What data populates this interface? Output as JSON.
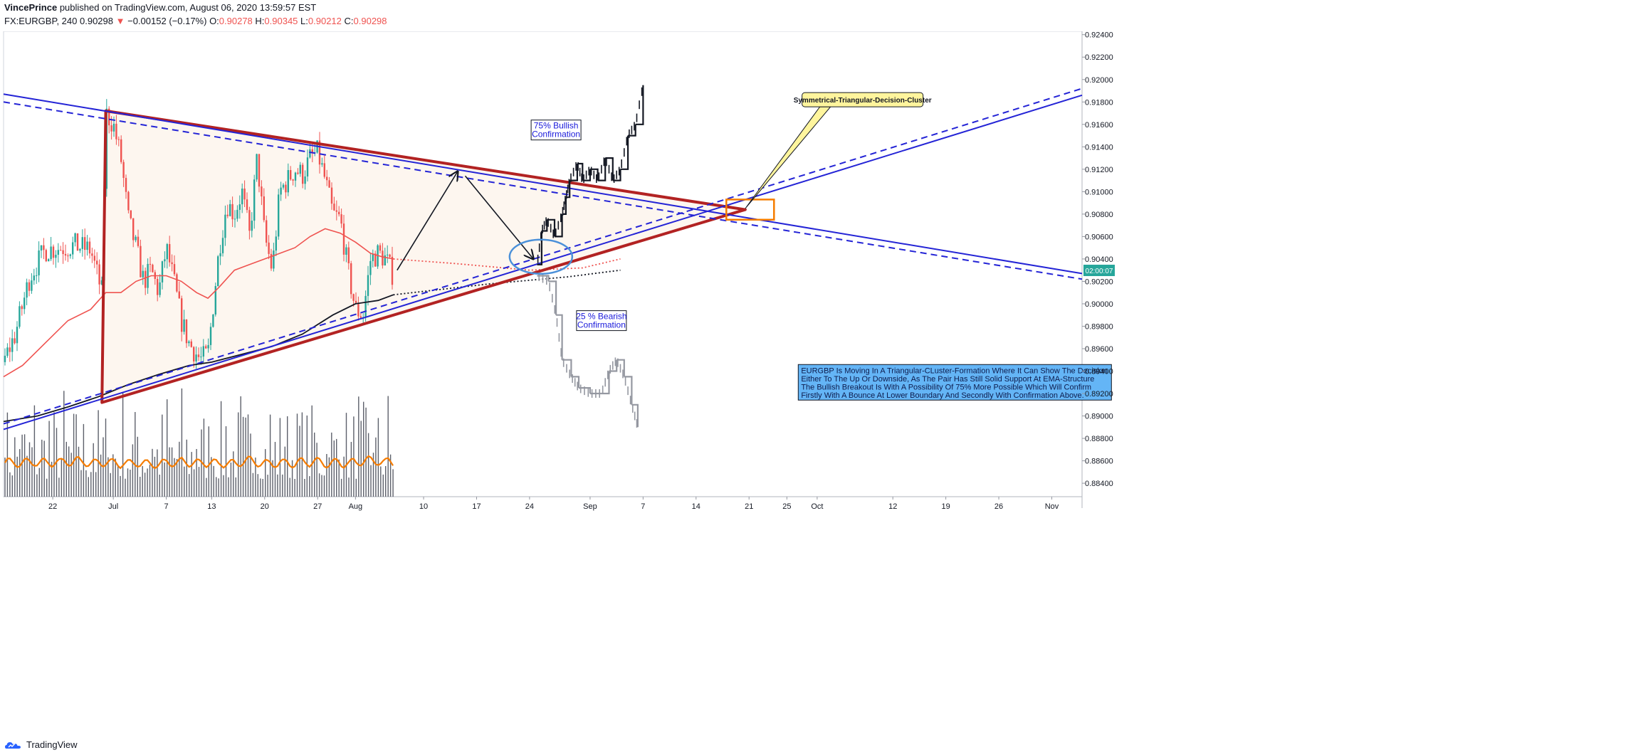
{
  "header": {
    "author": "VincePrince",
    "published": "published on TradingView.com, August 06, 2020 13:59:57 EST",
    "symbol": "FX:EURGBP, 240",
    "last": "0.90298",
    "change": "−0.00152 (−0.17%)",
    "open_label": "O:",
    "open": "0.90278",
    "high_label": "H:",
    "high": "0.90345",
    "low_label": "L:",
    "low": "0.90212",
    "close_label": "C:",
    "close": "0.90298"
  },
  "footer": {
    "brand": "TradingView"
  },
  "colors": {
    "trendline": "#2424d6",
    "triangle": "#b22222",
    "ema_red": "#ef5350",
    "ema_black": "#131722",
    "volume": "#5d606b",
    "volume_ma": "#f57c00",
    "current_price_tag": "#26a69a",
    "callout_bg": "#fff59d",
    "textbox_bg": "#64b5f6",
    "circle": "#4a90d9",
    "box": "#f57c00"
  },
  "chart_data": {
    "type": "candlestick",
    "symbol": "EURGBP",
    "timeframe": "240",
    "y_axis": {
      "ticks": [
        "0.92400",
        "0.92200",
        "0.92000",
        "0.91800",
        "0.91600",
        "0.91400",
        "0.91200",
        "0.91000",
        "0.90800",
        "0.90600",
        "0.90400",
        "0.90200",
        "0.90000",
        "0.89800",
        "0.89600",
        "0.89400",
        "0.89200",
        "0.89000",
        "0.88800",
        "0.88600",
        "0.88400"
      ],
      "ylim": [
        0.8828,
        0.9243
      ]
    },
    "x_axis": {
      "ticks": [
        "22",
        "Jul",
        "7",
        "13",
        "20",
        "27",
        "Aug",
        "10",
        "17",
        "24",
        "Sep",
        "7",
        "14",
        "21",
        "25",
        "Oct",
        "12",
        "19",
        "26",
        "Nov"
      ],
      "tick_days": [
        22,
        30,
        37,
        43,
        50,
        57,
        62,
        71,
        78,
        85,
        93,
        100,
        107,
        114,
        119,
        123,
        133,
        140,
        147,
        154
      ],
      "range_days": [
        15.5,
        158
      ]
    },
    "current_price_tag": "02:00:07",
    "current_price": 0.90298,
    "price_anchors_day_value": [
      [
        15.5,
        0.8948
      ],
      [
        17,
        0.8972
      ],
      [
        19,
        0.9025
      ],
      [
        21,
        0.9048
      ],
      [
        23,
        0.905
      ],
      [
        25,
        0.9052
      ],
      [
        27,
        0.9048
      ],
      [
        28.5,
        0.901
      ],
      [
        29,
        0.917
      ],
      [
        30,
        0.916
      ],
      [
        31,
        0.913
      ],
      [
        32,
        0.9075
      ],
      [
        33,
        0.905
      ],
      [
        34,
        0.902
      ],
      [
        35,
        0.903
      ],
      [
        36,
        0.901
      ],
      [
        37,
        0.905
      ],
      [
        38,
        0.902
      ],
      [
        39,
        0.8985
      ],
      [
        40,
        0.8965
      ],
      [
        41.5,
        0.895
      ],
      [
        42.5,
        0.8955
      ],
      [
        44,
        0.905
      ],
      [
        45,
        0.909
      ],
      [
        46,
        0.908
      ],
      [
        47,
        0.91
      ],
      [
        48,
        0.906
      ],
      [
        49,
        0.913
      ],
      [
        50,
        0.906
      ],
      [
        51,
        0.903
      ],
      [
        52,
        0.91
      ],
      [
        53,
        0.911
      ],
      [
        54,
        0.912
      ],
      [
        55,
        0.9115
      ],
      [
        56,
        0.913
      ],
      [
        57,
        0.9135
      ],
      [
        58,
        0.911
      ],
      [
        59,
        0.908
      ],
      [
        60,
        0.9075
      ],
      [
        61,
        0.903
      ],
      [
        62,
        0.8995
      ],
      [
        63,
        0.899
      ],
      [
        64,
        0.904
      ],
      [
        65,
        0.9045
      ],
      [
        66,
        0.904
      ],
      [
        67,
        0.9025
      ]
    ],
    "projection_bullish_anchors": [
      [
        86,
        0.9035
      ],
      [
        86.6,
        0.9065
      ],
      [
        87.3,
        0.9075
      ],
      [
        88.3,
        0.906
      ],
      [
        89.3,
        0.908
      ],
      [
        89.8,
        0.9095
      ],
      [
        90.3,
        0.911
      ],
      [
        91.3,
        0.9125
      ],
      [
        92,
        0.911
      ],
      [
        93,
        0.912
      ],
      [
        94,
        0.911
      ],
      [
        95,
        0.913
      ],
      [
        96,
        0.911
      ],
      [
        97,
        0.912
      ],
      [
        98,
        0.915
      ],
      [
        99,
        0.916
      ],
      [
        100,
        0.9195
      ]
    ],
    "projection_bearish_anchors": [
      [
        86,
        0.9025
      ],
      [
        87.5,
        0.902
      ],
      [
        88.5,
        0.899
      ],
      [
        89.3,
        0.895
      ],
      [
        90.5,
        0.8935
      ],
      [
        91.5,
        0.8925
      ],
      [
        93,
        0.892
      ],
      [
        94.5,
        0.892
      ],
      [
        95.5,
        0.894
      ],
      [
        96.5,
        0.895
      ],
      [
        97.5,
        0.8935
      ],
      [
        98.5,
        0.891
      ],
      [
        99.3,
        0.889
      ]
    ],
    "ema_red_anchors": [
      [
        15.5,
        0.8935
      ],
      [
        18,
        0.8945
      ],
      [
        21,
        0.8965
      ],
      [
        24,
        0.8985
      ],
      [
        27,
        0.8995
      ],
      [
        29,
        0.901
      ],
      [
        31,
        0.901
      ],
      [
        33,
        0.902
      ],
      [
        35,
        0.9025
      ],
      [
        37,
        0.9025
      ],
      [
        39,
        0.902
      ],
      [
        41,
        0.901
      ],
      [
        42.5,
        0.9005
      ],
      [
        44,
        0.9015
      ],
      [
        46,
        0.903
      ],
      [
        48,
        0.9035
      ],
      [
        50,
        0.904
      ],
      [
        52,
        0.9045
      ],
      [
        54,
        0.905
      ],
      [
        56,
        0.906
      ],
      [
        58,
        0.9067
      ],
      [
        60,
        0.9063
      ],
      [
        62,
        0.9055
      ],
      [
        64,
        0.9045
      ],
      [
        65.5,
        0.9042
      ],
      [
        67,
        0.904
      ]
    ],
    "ema_red_projection": [
      [
        67,
        0.904
      ],
      [
        75,
        0.9036
      ],
      [
        85,
        0.903
      ],
      [
        92,
        0.9032
      ],
      [
        97,
        0.904
      ]
    ],
    "ema_black_anchors": [
      [
        15.5,
        0.8895
      ],
      [
        20,
        0.89
      ],
      [
        24,
        0.8908
      ],
      [
        28,
        0.8917
      ],
      [
        32,
        0.8928
      ],
      [
        36,
        0.8937
      ],
      [
        40,
        0.8945
      ],
      [
        43,
        0.8948
      ],
      [
        47,
        0.8955
      ],
      [
        51,
        0.8962
      ],
      [
        55,
        0.8973
      ],
      [
        59,
        0.899
      ],
      [
        62,
        0.9
      ],
      [
        65,
        0.9003
      ],
      [
        67,
        0.9008
      ]
    ],
    "ema_black_projection": [
      [
        67,
        0.9008
      ],
      [
        80,
        0.9018
      ],
      [
        90,
        0.9024
      ],
      [
        97,
        0.903
      ]
    ],
    "volume_pane": {
      "bars_from_day": 15.5,
      "bars_to_day": 67,
      "ma_color": "volume_ma"
    },
    "trendlines": [
      {
        "style": "solid",
        "color": "trendline",
        "from": [
          15.5,
          0.9187
        ],
        "to": [
          158,
          0.9027
        ]
      },
      {
        "style": "dashed",
        "color": "trendline",
        "from": [
          15.5,
          0.918
        ],
        "to": [
          158,
          0.9022
        ]
      },
      {
        "style": "solid",
        "color": "trendline",
        "from": [
          15.5,
          0.8888
        ],
        "to": [
          158,
          0.9186
        ]
      },
      {
        "style": "dashed",
        "color": "trendline",
        "from": [
          15.5,
          0.8893
        ],
        "to": [
          158,
          0.9192
        ]
      }
    ],
    "triangle": {
      "color": "triangle",
      "points": [
        [
          29,
          0.9172
        ],
        [
          113.5,
          0.9084
        ],
        [
          28.5,
          0.8912
        ]
      ]
    },
    "arrows": [
      {
        "from": [
          67.5,
          0.903
        ],
        "to": [
          75.5,
          0.9118
        ]
      },
      {
        "from": [
          76.5,
          0.9114
        ],
        "to": [
          85.5,
          0.904
        ]
      }
    ],
    "annotations": [
      {
        "kind": "callout",
        "text": "Symmetrical-Triangular-Decision-Cluster",
        "anchor": [
          113.5,
          0.9085
        ],
        "at": [
          129,
          0.9182
        ]
      },
      {
        "kind": "label",
        "text_lines": [
          "75% Bullish",
          "Confirmation"
        ],
        "at": [
          88.5,
          0.9155
        ]
      },
      {
        "kind": "label",
        "text_lines": [
          "25 % Bearish",
          "Confirmation"
        ],
        "at": [
          94.5,
          0.8985
        ]
      },
      {
        "kind": "textbox",
        "text_lines": [
          "EURGBP Is Moving In A Triangular-CLuster-Formation Where It Can Show The Decision",
          "Either To The Up Or Downside, As The Pair Has Still Solid Support At EMA-Structure",
          "The Bullish Breakout Is With A Possibility Of 75% More Possible Which Will Confirm",
          "Firstly With A Bounce At Lower Boundary And Secondly With Confirmation Above."
        ],
        "at": [
          120.5,
          0.893
        ]
      }
    ],
    "circle": {
      "center": [
        86.5,
        0.9042
      ],
      "color": "circle"
    },
    "box": {
      "from": [
        111,
        0.9075
      ],
      "to": [
        117.3,
        0.9093
      ],
      "color": "box"
    }
  }
}
